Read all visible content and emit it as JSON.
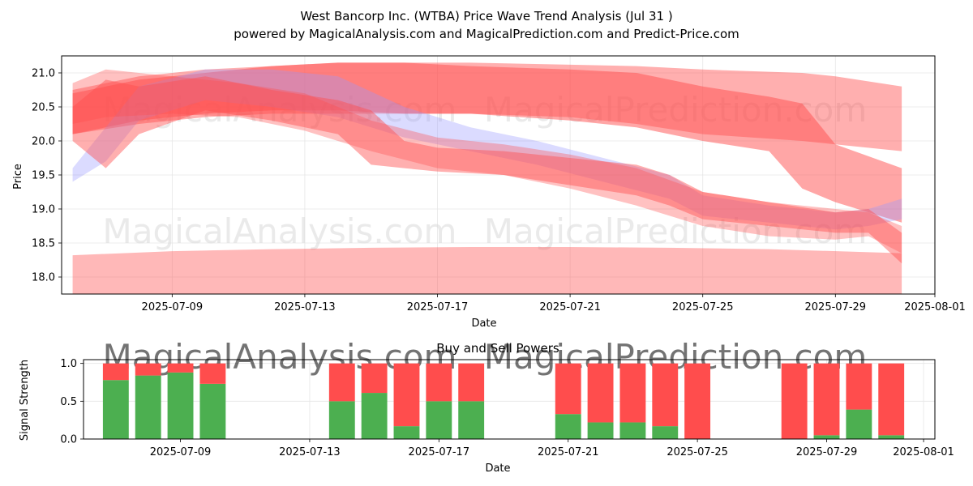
{
  "title": "West Bancorp Inc. (WTBA) Price Wave Trend Analysis (Jul 31 )",
  "subtitle": "powered by MagicalAnalysis.com and MagicalPrediction.com and Predict-Price.com",
  "watermarks": [
    "MagicalAnalysis.com",
    "MagicalPrediction.com"
  ],
  "colors": {
    "red": "#ff4d4d",
    "blue": "#9999ff",
    "buy": "#4caf50",
    "sell": "#ff4d4d"
  },
  "chart_data": [
    {
      "type": "area",
      "xlabel": "Date",
      "ylabel": "Price",
      "xlim": [
        "2025-07-05 16:00",
        "2025-08-01"
      ],
      "ylim": [
        17.75,
        21.25
      ],
      "grid": true,
      "x_ticks": [
        "2025-07-09",
        "2025-07-13",
        "2025-07-17",
        "2025-07-21",
        "2025-07-25",
        "2025-07-29",
        "2025-08-01"
      ],
      "y_ticks": [
        "18.0",
        "18.5",
        "19.0",
        "19.5",
        "20.0",
        "20.5",
        "21.0"
      ],
      "series": [
        {
          "color": "red",
          "opacity": 0.45,
          "dates": [
            "2025-07-06",
            "2025-07-08",
            "2025-07-10",
            "2025-07-12",
            "2025-07-14",
            "2025-07-16",
            "2025-07-18",
            "2025-07-21",
            "2025-07-23",
            "2025-07-25",
            "2025-07-28",
            "2025-07-29",
            "2025-07-31"
          ],
          "upper": [
            20.75,
            20.95,
            21.05,
            21.1,
            21.15,
            21.15,
            21.15,
            21.12,
            21.1,
            21.05,
            21.0,
            20.95,
            20.8
          ],
          "lower": [
            20.1,
            20.25,
            20.35,
            20.4,
            20.4,
            20.4,
            20.4,
            20.35,
            20.25,
            20.1,
            20.0,
            19.95,
            19.85
          ]
        },
        {
          "color": "red",
          "opacity": 0.5,
          "dates": [
            "2025-07-06",
            "2025-07-08",
            "2025-07-10",
            "2025-07-12",
            "2025-07-14",
            "2025-07-16",
            "2025-07-18",
            "2025-07-21",
            "2025-07-23",
            "2025-07-25",
            "2025-07-27",
            "2025-07-28",
            "2025-07-29",
            "2025-07-31"
          ],
          "upper": [
            20.7,
            20.9,
            21.0,
            21.1,
            21.15,
            21.15,
            21.1,
            21.05,
            21.0,
            20.8,
            20.65,
            20.55,
            19.95,
            19.6
          ],
          "lower": [
            20.1,
            20.3,
            20.4,
            20.45,
            20.45,
            20.4,
            20.4,
            20.3,
            20.2,
            20.0,
            19.85,
            19.3,
            19.1,
            18.8
          ]
        },
        {
          "color": "blue",
          "opacity": 0.35,
          "dates": [
            "2025-07-06",
            "2025-07-07",
            "2025-07-08",
            "2025-07-10",
            "2025-07-12",
            "2025-07-14",
            "2025-07-16",
            "2025-07-18",
            "2025-07-20",
            "2025-07-22",
            "2025-07-24",
            "2025-07-25",
            "2025-07-27",
            "2025-07-29",
            "2025-07-30",
            "2025-07-31"
          ],
          "upper": [
            19.6,
            20.2,
            20.8,
            21.05,
            21.05,
            20.95,
            20.5,
            20.2,
            20.0,
            19.75,
            19.5,
            19.2,
            19.05,
            18.95,
            19.0,
            19.15
          ],
          "lower": [
            19.4,
            19.7,
            20.3,
            20.6,
            20.5,
            20.35,
            20.05,
            19.85,
            19.65,
            19.4,
            19.15,
            18.9,
            18.8,
            18.7,
            18.75,
            18.85
          ]
        },
        {
          "color": "red",
          "opacity": 0.45,
          "dates": [
            "2025-07-06",
            "2025-07-07",
            "2025-07-08",
            "2025-07-10",
            "2025-07-12",
            "2025-07-14",
            "2025-07-15",
            "2025-07-16",
            "2025-07-17",
            "2025-07-19",
            "2025-07-21",
            "2025-07-23",
            "2025-07-24",
            "2025-07-25",
            "2025-07-27",
            "2025-07-29",
            "2025-07-30",
            "2025-07-31"
          ],
          "upper": [
            20.5,
            20.9,
            20.8,
            20.95,
            20.75,
            20.6,
            20.45,
            20.0,
            19.9,
            19.85,
            19.75,
            19.65,
            19.5,
            19.25,
            19.1,
            18.95,
            19.0,
            18.65
          ],
          "lower": [
            20.0,
            19.6,
            20.1,
            20.45,
            20.3,
            20.1,
            19.65,
            19.6,
            19.55,
            19.5,
            19.35,
            19.2,
            19.05,
            18.85,
            18.75,
            18.65,
            18.65,
            18.2
          ]
        },
        {
          "color": "red",
          "opacity": 0.35,
          "dates": [
            "2025-07-06",
            "2025-07-07",
            "2025-07-09",
            "2025-07-11",
            "2025-07-13",
            "2025-07-15",
            "2025-07-17",
            "2025-07-19",
            "2025-07-21",
            "2025-07-23",
            "2025-07-25",
            "2025-07-27",
            "2025-07-29",
            "2025-07-30",
            "2025-07-31"
          ],
          "upper": [
            20.85,
            21.05,
            20.95,
            20.85,
            20.7,
            20.3,
            20.05,
            19.95,
            19.8,
            19.6,
            19.25,
            19.1,
            19.0,
            18.95,
            18.75
          ],
          "lower": [
            20.25,
            20.35,
            20.4,
            20.35,
            20.15,
            19.85,
            19.6,
            19.5,
            19.3,
            19.05,
            18.75,
            18.6,
            18.55,
            18.6,
            18.35
          ]
        },
        {
          "color": "red",
          "opacity": 0.4,
          "dates": [
            "2025-07-06",
            "2025-07-09",
            "2025-07-12",
            "2025-07-15",
            "2025-07-18",
            "2025-07-21",
            "2025-07-24",
            "2025-07-27",
            "2025-07-31"
          ],
          "upper": [
            18.32,
            18.38,
            18.41,
            18.43,
            18.44,
            18.44,
            18.43,
            18.41,
            18.35
          ],
          "lower": [
            17.72,
            17.72,
            17.72,
            17.72,
            17.72,
            17.72,
            17.72,
            17.72,
            17.72
          ]
        }
      ]
    },
    {
      "type": "bar",
      "title": "Buy and Sell Powers",
      "xlabel": "Date",
      "ylabel": "Signal Strength",
      "ylim": [
        0,
        1.05
      ],
      "grid": true,
      "x_ticks": [
        "2025-07-09",
        "2025-07-13",
        "2025-07-17",
        "2025-07-21",
        "2025-07-25",
        "2025-07-29",
        "2025-08-01"
      ],
      "y_ticks": [
        "0.0",
        "0.5",
        "1.0"
      ],
      "dates": [
        "2025-07-07",
        "2025-07-08",
        "2025-07-09",
        "2025-07-10",
        "2025-07-14",
        "2025-07-15",
        "2025-07-16",
        "2025-07-17",
        "2025-07-18",
        "2025-07-21",
        "2025-07-22",
        "2025-07-23",
        "2025-07-24",
        "2025-07-25",
        "2025-07-28",
        "2025-07-29",
        "2025-07-30",
        "2025-07-31"
      ],
      "buy": [
        0.78,
        0.84,
        0.88,
        0.73,
        0.5,
        0.61,
        0.17,
        0.5,
        0.5,
        0.33,
        0.22,
        0.22,
        0.17,
        0.0,
        0.0,
        0.05,
        0.39,
        0.05
      ],
      "sell": [
        0.22,
        0.16,
        0.12,
        0.27,
        0.5,
        0.39,
        0.83,
        0.5,
        0.5,
        0.67,
        0.78,
        0.78,
        0.83,
        1.0,
        1.0,
        0.95,
        0.61,
        0.95
      ]
    }
  ]
}
